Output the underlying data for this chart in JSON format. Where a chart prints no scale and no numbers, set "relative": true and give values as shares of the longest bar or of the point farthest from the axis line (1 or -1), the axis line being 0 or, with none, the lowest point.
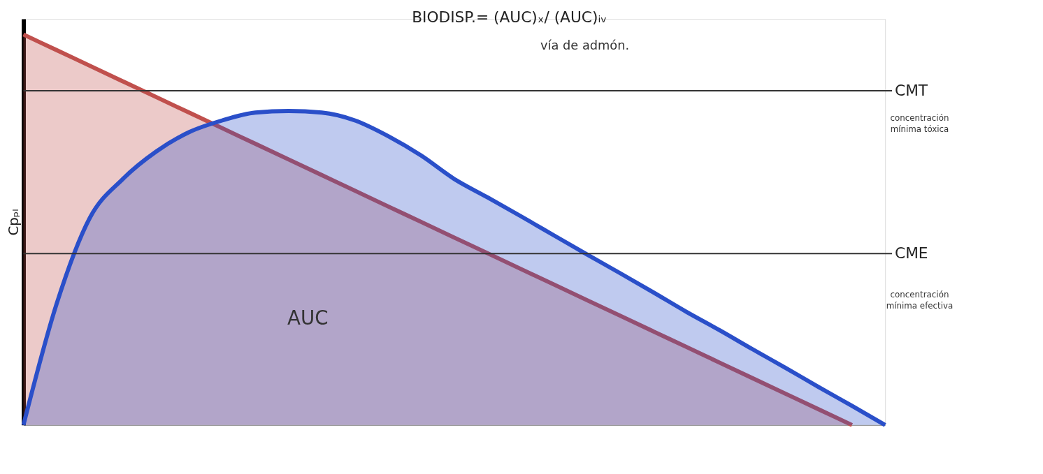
{
  "chart_data": {
    "type": "area",
    "title": "BIODISP.= (AUC)ₓ/ (AUC)ᵢᵥ",
    "ylabel": "Cpₚₗ",
    "relative": true,
    "grid": false,
    "categories": [
      null,
      null,
      null,
      null,
      null,
      null,
      null,
      null,
      null,
      null,
      null,
      null,
      null,
      null,
      null,
      null,
      null,
      null,
      null,
      null,
      null,
      null,
      null,
      null,
      null,
      null,
      null
    ],
    "series": [
      {
        "color": "#c0504d",
        "values": [
          1.0,
          0.96,
          0.92,
          0.88,
          0.84,
          0.8,
          0.76,
          0.72,
          0.68,
          0.64,
          0.6,
          0.56,
          0.52,
          0.48,
          0.44,
          0.4,
          0.36,
          0.32,
          0.28,
          0.24,
          0.2,
          0.16,
          0.12,
          0.08,
          0.04,
          0.0,
          null
        ]
      },
      {
        "color": "#2a4fc9",
        "values": [
          0.0,
          0.31,
          0.53,
          0.63,
          0.7,
          0.75,
          0.78,
          0.8,
          0.804,
          0.8,
          0.78,
          0.74,
          0.69,
          0.63,
          0.583,
          0.535,
          0.486,
          0.437,
          0.389,
          0.34,
          0.29,
          0.243,
          0.194,
          0.146,
          0.097,
          0.049,
          0.0
        ]
      }
    ],
    "ref_lines": [
      {
        "axis": "y",
        "value": 0.856,
        "label": "CMT",
        "color": "#333333"
      },
      {
        "axis": "y",
        "value": 0.439,
        "label": "CME",
        "color": "#333333"
      }
    ],
    "annotations": [
      "vía de admón.",
      "AUC",
      "concentración mínima tóxica",
      "concentración mínima efectiva"
    ]
  }
}
